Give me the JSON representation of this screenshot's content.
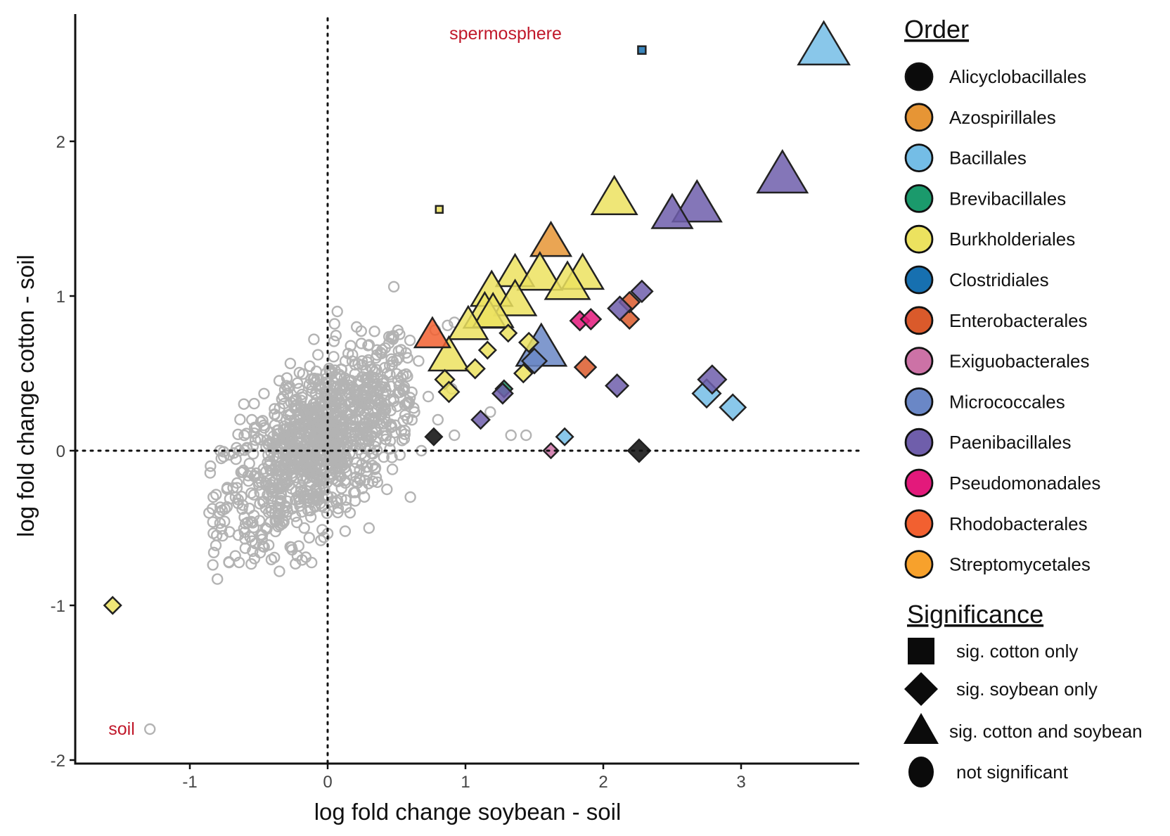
{
  "chart_data": {
    "type": "scatter",
    "xlabel": "log fold change soybean - soil",
    "ylabel": "log fold change cotton - soil",
    "xlim": [
      -1.8,
      3.85
    ],
    "ylim": [
      -2.05,
      2.75
    ],
    "xticks": [
      -1,
      0,
      1,
      2,
      3
    ],
    "yticks": [
      -2,
      -1,
      0,
      1,
      2
    ],
    "grid": false,
    "reference_lines": {
      "x": 0,
      "y": 0,
      "style": "dotted"
    },
    "annotations": [
      {
        "text": "spermosphere",
        "x": 1.3,
        "y": 2.68
      },
      {
        "text": "soil",
        "x": -1.5,
        "y": -1.8
      }
    ],
    "legend_order": {
      "title": "Order",
      "entries": [
        {
          "label": "Alicyclobacillales",
          "color": "#0b0b0b"
        },
        {
          "label": "Azospirillales",
          "color": "#e69535"
        },
        {
          "label": "Bacillales",
          "color": "#74bde6"
        },
        {
          "label": "Brevibacillales",
          "color": "#1b9a6c"
        },
        {
          "label": "Burkholderiales",
          "color": "#ece25f"
        },
        {
          "label": "Clostridiales",
          "color": "#1770b0"
        },
        {
          "label": "Enterobacterales",
          "color": "#da5a2b"
        },
        {
          "label": "Exiguobacterales",
          "color": "#cc72a6"
        },
        {
          "label": "Micrococcales",
          "color": "#6a87c6"
        },
        {
          "label": "Paenibacillales",
          "color": "#6f5eab"
        },
        {
          "label": "Pseudomonadales",
          "color": "#e3197b"
        },
        {
          "label": "Rhodobacterales",
          "color": "#f26030"
        },
        {
          "label": "Streptomycetales",
          "color": "#f7a12c"
        }
      ]
    },
    "legend_significance": {
      "title": "Significance",
      "entries": [
        {
          "label": "sig. cotton only",
          "shape": "square"
        },
        {
          "label": "sig. soybean only",
          "shape": "diamond"
        },
        {
          "label": "sig. cotton and soybean",
          "shape": "triangle"
        },
        {
          "label": "not significant",
          "shape": "circle"
        }
      ]
    },
    "significant_points": [
      {
        "x": 3.6,
        "y": 2.6,
        "order": "Bacillales",
        "shape": "triangle",
        "size": 1.0
      },
      {
        "x": 2.28,
        "y": 2.59,
        "order": "Clostridiales",
        "shape": "square",
        "size": 0.3
      },
      {
        "x": 3.3,
        "y": 1.77,
        "order": "Paenibacillales",
        "shape": "triangle",
        "size": 0.95
      },
      {
        "x": 2.68,
        "y": 1.58,
        "order": "Paenibacillales",
        "shape": "triangle",
        "size": 0.9
      },
      {
        "x": 2.5,
        "y": 1.52,
        "order": "Paenibacillales",
        "shape": "triangle",
        "size": 0.55
      },
      {
        "x": 2.08,
        "y": 1.62,
        "order": "Burkholderiales",
        "shape": "triangle",
        "size": 0.75
      },
      {
        "x": 0.81,
        "y": 1.56,
        "order": "Burkholderiales",
        "shape": "square",
        "size": 0.18
      },
      {
        "x": 1.62,
        "y": 1.34,
        "order": "Azospirillales",
        "shape": "triangle",
        "size": 0.55
      },
      {
        "x": 1.36,
        "y": 1.14,
        "order": "Burkholderiales",
        "shape": "triangle",
        "size": 0.45
      },
      {
        "x": 1.54,
        "y": 1.13,
        "order": "Burkholderiales",
        "shape": "triangle",
        "size": 0.72
      },
      {
        "x": 1.85,
        "y": 1.13,
        "order": "Burkholderiales",
        "shape": "triangle",
        "size": 0.6
      },
      {
        "x": 1.74,
        "y": 1.07,
        "order": "Burkholderiales",
        "shape": "triangle",
        "size": 0.72
      },
      {
        "x": 1.19,
        "y": 1.02,
        "order": "Burkholderiales",
        "shape": "triangle",
        "size": 0.6
      },
      {
        "x": 1.36,
        "y": 0.96,
        "order": "Burkholderiales",
        "shape": "triangle",
        "size": 0.62
      },
      {
        "x": 1.14,
        "y": 0.88,
        "order": "Burkholderiales",
        "shape": "triangle",
        "size": 0.62
      },
      {
        "x": 1.2,
        "y": 0.88,
        "order": "Burkholderiales",
        "shape": "triangle",
        "size": 0.55
      },
      {
        "x": 1.02,
        "y": 0.8,
        "order": "Burkholderiales",
        "shape": "triangle",
        "size": 0.5
      },
      {
        "x": 0.88,
        "y": 0.6,
        "order": "Burkholderiales",
        "shape": "triangle",
        "size": 0.55
      },
      {
        "x": 0.76,
        "y": 0.74,
        "order": "Rhodobacterales",
        "shape": "triangle",
        "size": 0.35
      },
      {
        "x": 1.55,
        "y": 0.65,
        "order": "Micrococcales",
        "shape": "triangle",
        "size": 0.95
      },
      {
        "x": 1.31,
        "y": 0.76,
        "order": "Burkholderiales",
        "shape": "diamond",
        "size": 0.3
      },
      {
        "x": 1.16,
        "y": 0.65,
        "order": "Burkholderiales",
        "shape": "diamond",
        "size": 0.3
      },
      {
        "x": 1.46,
        "y": 0.7,
        "order": "Burkholderiales",
        "shape": "diamond",
        "size": 0.4
      },
      {
        "x": 1.5,
        "y": 0.58,
        "order": "Micrococcales",
        "shape": "diamond",
        "size": 0.65
      },
      {
        "x": 1.42,
        "y": 0.5,
        "order": "Burkholderiales",
        "shape": "diamond",
        "size": 0.35
      },
      {
        "x": 0.85,
        "y": 0.46,
        "order": "Burkholderiales",
        "shape": "diamond",
        "size": 0.4
      },
      {
        "x": 1.07,
        "y": 0.53,
        "order": "Burkholderiales",
        "shape": "diamond",
        "size": 0.4
      },
      {
        "x": 0.88,
        "y": 0.38,
        "order": "Burkholderiales",
        "shape": "diamond",
        "size": 0.45
      },
      {
        "x": 1.28,
        "y": 0.4,
        "order": "Brevibacillales",
        "shape": "diamond",
        "size": 0.3
      },
      {
        "x": 1.27,
        "y": 0.37,
        "order": "Paenibacillales",
        "shape": "diamond",
        "size": 0.45
      },
      {
        "x": 1.11,
        "y": 0.2,
        "order": "Paenibacillales",
        "shape": "diamond",
        "size": 0.35
      },
      {
        "x": 0.77,
        "y": 0.09,
        "order": "Alicyclobacillales",
        "shape": "diamond",
        "size": 0.3
      },
      {
        "x": 1.72,
        "y": 0.09,
        "order": "Bacillales",
        "shape": "diamond",
        "size": 0.3
      },
      {
        "x": 1.62,
        "y": 0.0,
        "order": "Exiguobacterales",
        "shape": "diamond",
        "size": 0.22
      },
      {
        "x": 2.26,
        "y": 0.0,
        "order": "Alicyclobacillales",
        "shape": "diamond",
        "size": 0.55
      },
      {
        "x": 1.87,
        "y": 0.54,
        "order": "Enterobacterales",
        "shape": "diamond",
        "size": 0.5
      },
      {
        "x": 2.1,
        "y": 0.42,
        "order": "Paenibacillales",
        "shape": "diamond",
        "size": 0.55
      },
      {
        "x": 1.83,
        "y": 0.84,
        "order": "Pseudomonadales",
        "shape": "diamond",
        "size": 0.4
      },
      {
        "x": 1.91,
        "y": 0.85,
        "order": "Pseudomonadales",
        "shape": "diamond",
        "size": 0.45
      },
      {
        "x": 2.19,
        "y": 0.85,
        "order": "Enterobacterales",
        "shape": "diamond",
        "size": 0.4
      },
      {
        "x": 2.19,
        "y": 0.96,
        "order": "Enterobacterales",
        "shape": "diamond",
        "size": 0.45
      },
      {
        "x": 2.12,
        "y": 0.92,
        "order": "Paenibacillales",
        "shape": "diamond",
        "size": 0.6
      },
      {
        "x": 2.28,
        "y": 1.03,
        "order": "Paenibacillales",
        "shape": "diamond",
        "size": 0.5
      },
      {
        "x": 2.75,
        "y": 0.37,
        "order": "Bacillales",
        "shape": "diamond",
        "size": 0.8
      },
      {
        "x": 2.79,
        "y": 0.46,
        "order": "Paenibacillales",
        "shape": "diamond",
        "size": 0.8
      },
      {
        "x": 2.94,
        "y": 0.28,
        "order": "Bacillales",
        "shape": "diamond",
        "size": 0.7
      },
      {
        "x": -1.56,
        "y": -1.0,
        "order": "Burkholderiales",
        "shape": "diamond",
        "size": 0.3
      }
    ],
    "nonsignificant_points": {
      "label": "not significant",
      "color": "#b3b3b3",
      "cloud": {
        "center": [
          -0.05,
          0.05
        ],
        "spread": [
          0.35,
          0.33
        ],
        "count": 1100
      },
      "points": [
        [
          -1.29,
          -1.8
        ],
        [
          -0.8,
          -0.83
        ],
        [
          -0.35,
          -0.78
        ],
        [
          -0.67,
          -0.68
        ],
        [
          -0.22,
          -0.68
        ],
        [
          -0.05,
          -0.58
        ],
        [
          0.6,
          -0.3
        ],
        [
          0.48,
          0.32
        ],
        [
          0.42,
          0.3
        ],
        [
          0.48,
          1.06
        ],
        [
          0.05,
          0.82
        ],
        [
          0.21,
          0.8
        ],
        [
          0.07,
          0.9
        ],
        [
          -0.1,
          0.72
        ],
        [
          0.58,
          0.6
        ],
        [
          0.66,
          0.58
        ],
        [
          0.45,
          0.55
        ],
        [
          0.9,
          0.4
        ],
        [
          0.73,
          0.35
        ],
        [
          0.63,
          0.25
        ],
        [
          0.8,
          0.2
        ],
        [
          1.18,
          0.25
        ],
        [
          0.92,
          0.1
        ],
        [
          0.56,
          0.13
        ],
        [
          1.33,
          0.1
        ],
        [
          1.44,
          0.1
        ],
        [
          0.68,
          0.0
        ],
        [
          -0.85,
          -0.1
        ],
        [
          -0.83,
          -0.3
        ],
        [
          -0.6,
          -0.57
        ],
        [
          -0.45,
          -0.5
        ],
        [
          -0.3,
          0.42
        ],
        [
          0.18,
          0.62
        ],
        [
          0.3,
          -0.5
        ],
        [
          0.43,
          -0.25
        ],
        [
          -0.55,
          0.2
        ],
        [
          0.35,
          0.6
        ],
        [
          0.25,
          0.58
        ],
        [
          0.92,
          0.83
        ],
        [
          0.87,
          0.81
        ],
        [
          0.78,
          0.78
        ],
        [
          0.55,
          0.4
        ]
      ]
    }
  }
}
